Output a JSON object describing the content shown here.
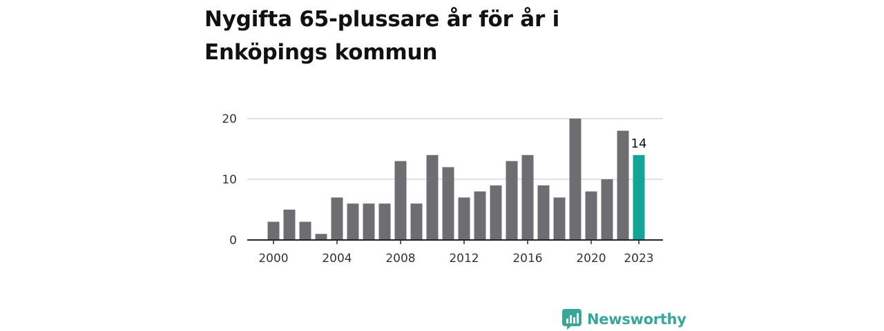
{
  "title": "Nygifta 65-plussare år för år i Enköpings kommun",
  "brand": {
    "name": "Newsworthy",
    "color": "#3aa69a"
  },
  "colors": {
    "bar": "#6e6d72",
    "highlight": "#13a397",
    "grid": "#d9d9d9",
    "axis": "#222222",
    "text": "#333333"
  },
  "chart_data": {
    "type": "bar",
    "title": "Nygifta 65-plussare år för år i Enköpings kommun",
    "xlabel": "",
    "ylabel": "",
    "x": [
      2000,
      2001,
      2002,
      2003,
      2004,
      2005,
      2006,
      2007,
      2008,
      2009,
      2010,
      2011,
      2012,
      2013,
      2014,
      2015,
      2016,
      2017,
      2018,
      2019,
      2020,
      2021,
      2022,
      2023
    ],
    "values": [
      3,
      5,
      3,
      1,
      7,
      6,
      6,
      6,
      13,
      6,
      14,
      12,
      7,
      8,
      9,
      13,
      14,
      9,
      7,
      20,
      8,
      10,
      18,
      14
    ],
    "ylim": [
      0,
      20
    ],
    "yticks": [
      0,
      10,
      20
    ],
    "xticks": [
      2000,
      2004,
      2008,
      2012,
      2016,
      2020,
      2023
    ],
    "highlight_year": 2023,
    "annotation": "14",
    "grid": true,
    "legend": "none"
  }
}
